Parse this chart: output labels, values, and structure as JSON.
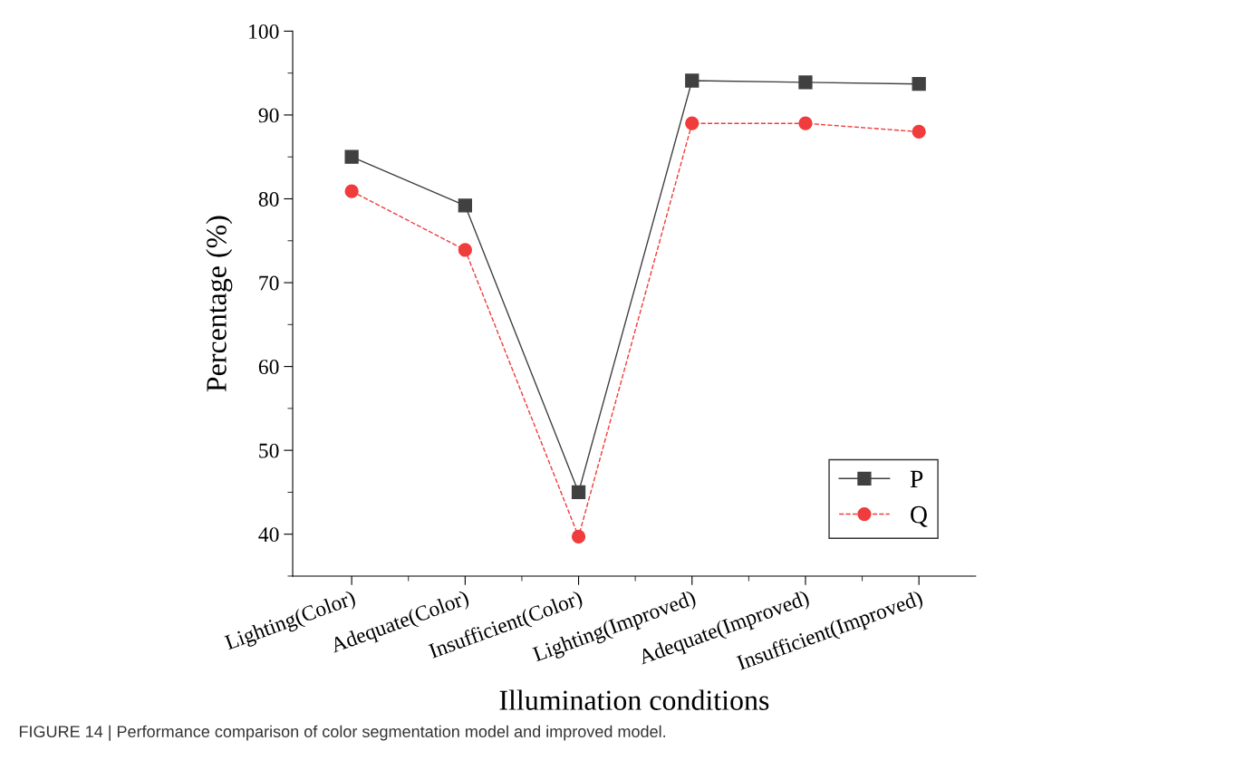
{
  "chart_data": {
    "type": "line",
    "xlabel": "Illumination conditions",
    "ylabel": "Percentage (%)",
    "categories": [
      "Lighting(Color)",
      "Adequate(Color)",
      "Insufficient(Color)",
      "Lighting(Improved)",
      "Adequate(Improved)",
      "Insufficient(Improved)"
    ],
    "series": [
      {
        "name": "P",
        "color": "#404040",
        "marker": "square",
        "line_style": "solid",
        "values": [
          85.0,
          79.2,
          45.0,
          94.1,
          93.9,
          93.7
        ]
      },
      {
        "name": "Q",
        "color": "#f03c3c",
        "marker": "circle",
        "line_style": "dashed",
        "values": [
          80.9,
          73.9,
          39.7,
          89.0,
          89.0,
          88.0
        ]
      }
    ],
    "ylim": [
      35,
      100
    ],
    "yticks": [
      40,
      50,
      60,
      70,
      80,
      90,
      100
    ],
    "grid": false,
    "legend": "bottom right",
    "annotations": [
      "FIGURE 14 | Performance comparison of color segmentation model and improved model."
    ]
  }
}
